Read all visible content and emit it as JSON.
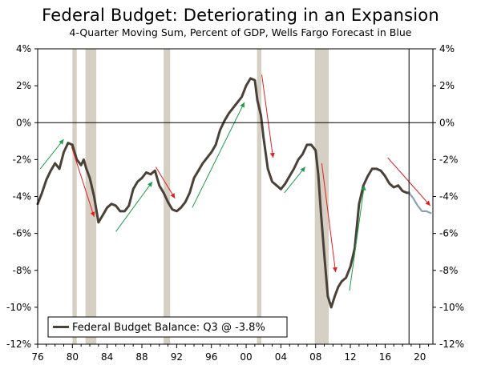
{
  "chart_data": {
    "type": "line",
    "title": "Federal Budget: Deteriorating in an Expansion",
    "subtitle": "4-Quarter Moving Sum, Percent of GDP, Wells Fargo Forecast in Blue",
    "xlabel": "",
    "ylabel": "",
    "x_tick_labels": [
      "76",
      "80",
      "84",
      "88",
      "92",
      "96",
      "00",
      "04",
      "08",
      "12",
      "16",
      "20"
    ],
    "y_tick_labels": [
      "4%",
      "2%",
      "0%",
      "-2%",
      "-4%",
      "-6%",
      "-8%",
      "-10%",
      "-12%"
    ],
    "ylim": [
      -12,
      4
    ],
    "xlim": [
      1976,
      2021.5
    ],
    "grid": false,
    "legend": {
      "position": "bottom-left",
      "entries": [
        "Federal Budget Balance: Q3 @ -3.8%"
      ]
    },
    "recessions": [
      [
        1980.0,
        1980.5
      ],
      [
        1981.5,
        1982.75
      ],
      [
        1990.5,
        1991.25
      ],
      [
        2001.25,
        2001.75
      ],
      [
        2007.9,
        2009.5
      ]
    ],
    "forecast_start": 2018.75,
    "colors": {
      "actual": "#4a4139",
      "forecast": "#8da0b6",
      "recession": "#d5d0c3",
      "up_arrow": "#1e9c4a",
      "down_arrow": "#e02020"
    },
    "series": [
      {
        "name": "Federal Budget Balance: Q3 @ -3.8%",
        "points": [
          [
            1976.0,
            -4.4
          ],
          [
            1976.5,
            -3.8
          ],
          [
            1977.0,
            -3.1
          ],
          [
            1977.5,
            -2.6
          ],
          [
            1978.0,
            -2.2
          ],
          [
            1978.5,
            -2.5
          ],
          [
            1979.0,
            -1.6
          ],
          [
            1979.5,
            -1.1
          ],
          [
            1980.0,
            -1.2
          ],
          [
            1980.5,
            -2.0
          ],
          [
            1981.0,
            -2.3
          ],
          [
            1981.3,
            -2.0
          ],
          [
            1981.6,
            -2.5
          ],
          [
            1982.0,
            -3.0
          ],
          [
            1982.5,
            -4.0
          ],
          [
            1983.0,
            -5.4
          ],
          [
            1983.5,
            -5.0
          ],
          [
            1984.0,
            -4.6
          ],
          [
            1984.5,
            -4.4
          ],
          [
            1985.0,
            -4.5
          ],
          [
            1985.5,
            -4.8
          ],
          [
            1986.0,
            -4.8
          ],
          [
            1986.5,
            -4.5
          ],
          [
            1987.0,
            -3.6
          ],
          [
            1987.5,
            -3.2
          ],
          [
            1988.0,
            -3.0
          ],
          [
            1988.5,
            -2.7
          ],
          [
            1989.0,
            -2.8
          ],
          [
            1989.5,
            -2.6
          ],
          [
            1990.0,
            -3.4
          ],
          [
            1990.5,
            -3.8
          ],
          [
            1991.0,
            -4.3
          ],
          [
            1991.5,
            -4.7
          ],
          [
            1992.0,
            -4.8
          ],
          [
            1992.5,
            -4.6
          ],
          [
            1993.0,
            -4.3
          ],
          [
            1993.5,
            -3.8
          ],
          [
            1994.0,
            -3.0
          ],
          [
            1994.5,
            -2.6
          ],
          [
            1995.0,
            -2.2
          ],
          [
            1996.0,
            -1.6
          ],
          [
            1996.5,
            -1.2
          ],
          [
            1997.0,
            -0.4
          ],
          [
            1997.5,
            0.1
          ],
          [
            1998.0,
            0.5
          ],
          [
            1998.5,
            0.8
          ],
          [
            1999.0,
            1.1
          ],
          [
            1999.5,
            1.4
          ],
          [
            2000.0,
            2.0
          ],
          [
            2000.5,
            2.4
          ],
          [
            2001.0,
            2.3
          ],
          [
            2001.3,
            1.2
          ],
          [
            2001.7,
            0.4
          ],
          [
            2002.0,
            -0.8
          ],
          [
            2002.5,
            -2.5
          ],
          [
            2003.0,
            -3.2
          ],
          [
            2003.5,
            -3.4
          ],
          [
            2004.0,
            -3.6
          ],
          [
            2004.5,
            -3.3
          ],
          [
            2005.0,
            -2.9
          ],
          [
            2005.5,
            -2.5
          ],
          [
            2006.0,
            -2.0
          ],
          [
            2006.5,
            -1.7
          ],
          [
            2007.0,
            -1.2
          ],
          [
            2007.5,
            -1.2
          ],
          [
            2008.0,
            -1.5
          ],
          [
            2008.3,
            -2.8
          ],
          [
            2008.6,
            -4.8
          ],
          [
            2009.0,
            -7.2
          ],
          [
            2009.4,
            -9.4
          ],
          [
            2009.8,
            -10.0
          ],
          [
            2010.2,
            -9.4
          ],
          [
            2010.6,
            -8.9
          ],
          [
            2011.0,
            -8.6
          ],
          [
            2011.5,
            -8.4
          ],
          [
            2012.0,
            -7.8
          ],
          [
            2012.5,
            -6.8
          ],
          [
            2013.0,
            -4.4
          ],
          [
            2013.5,
            -3.4
          ],
          [
            2014.0,
            -2.9
          ],
          [
            2014.5,
            -2.5
          ],
          [
            2015.0,
            -2.5
          ],
          [
            2015.5,
            -2.6
          ],
          [
            2016.0,
            -2.9
          ],
          [
            2016.5,
            -3.3
          ],
          [
            2017.0,
            -3.5
          ],
          [
            2017.5,
            -3.4
          ],
          [
            2018.0,
            -3.7
          ],
          [
            2018.5,
            -3.8
          ],
          [
            2018.75,
            -3.8
          ]
        ]
      },
      {
        "name": "",
        "forecast": true,
        "points": [
          [
            2018.75,
            -3.8
          ],
          [
            2019.25,
            -4.1
          ],
          [
            2019.75,
            -4.5
          ],
          [
            2020.25,
            -4.8
          ],
          [
            2020.75,
            -4.8
          ],
          [
            2021.25,
            -4.9
          ]
        ]
      }
    ],
    "annotation_arrows": [
      {
        "direction": "up",
        "from": [
          1976.3,
          -2.5
        ],
        "to": [
          1979.0,
          -0.9
        ]
      },
      {
        "direction": "down",
        "from": [
          1979.9,
          -1.3
        ],
        "to": [
          1982.5,
          -5.1
        ]
      },
      {
        "direction": "up",
        "from": [
          1985.0,
          -5.9
        ],
        "to": [
          1989.2,
          -3.2
        ]
      },
      {
        "direction": "down",
        "from": [
          1989.6,
          -2.4
        ],
        "to": [
          1991.8,
          -4.1
        ]
      },
      {
        "direction": "up",
        "from": [
          1993.8,
          -4.6
        ],
        "to": [
          1999.8,
          1.1
        ]
      },
      {
        "direction": "down",
        "from": [
          2001.8,
          2.6
        ],
        "to": [
          2003.1,
          -1.9
        ]
      },
      {
        "direction": "up",
        "from": [
          2004.4,
          -3.8
        ],
        "to": [
          2006.8,
          -2.4
        ]
      },
      {
        "direction": "down",
        "from": [
          2008.7,
          -2.2
        ],
        "to": [
          2010.3,
          -8.1
        ]
      },
      {
        "direction": "up",
        "from": [
          2011.9,
          -9.1
        ],
        "to": [
          2013.6,
          -3.4
        ]
      },
      {
        "direction": "down",
        "from": [
          2016.3,
          -1.9
        ],
        "to": [
          2021.2,
          -4.5
        ]
      }
    ]
  }
}
